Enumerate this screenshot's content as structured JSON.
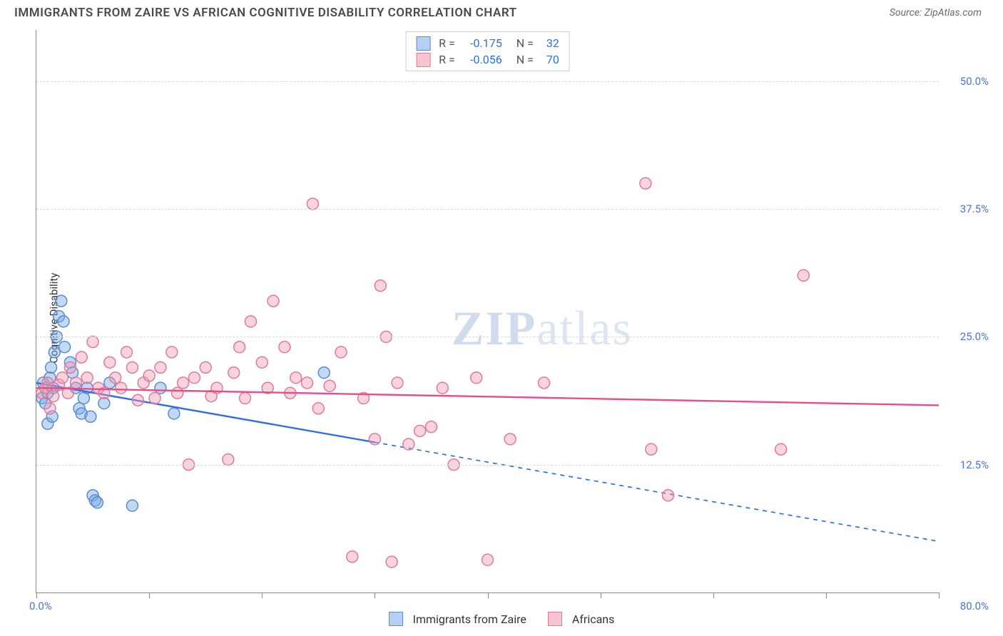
{
  "header": {
    "title": "IMMIGRANTS FROM ZAIRE VS AFRICAN COGNITIVE DISABILITY CORRELATION CHART",
    "source_prefix": "Source: ",
    "source_name": "ZipAtlas.com"
  },
  "watermark": {
    "zip": "ZIP",
    "atlas": "atlas"
  },
  "chart": {
    "type": "scatter",
    "ylabel": "Cognitive Disability",
    "xlim": [
      0,
      80
    ],
    "ylim": [
      0,
      55
    ],
    "xticks_pct": [
      0,
      12.5,
      25,
      37.5,
      50,
      62.5,
      75,
      87.5,
      100
    ],
    "yticks": [
      {
        "v": 12.5,
        "label": "12.5%"
      },
      {
        "v": 25.0,
        "label": "25.0%"
      },
      {
        "v": 37.5,
        "label": "37.5%"
      },
      {
        "v": 50.0,
        "label": "50.0%"
      }
    ],
    "x_origin_label": "0.0%",
    "x_max_label": "80.0%",
    "background_color": "#ffffff",
    "grid_color": "#d8d8d8",
    "series": [
      {
        "key": "zaire",
        "label": "Immigrants from Zaire",
        "color_fill": "rgba(120,170,230,0.45)",
        "color_stroke": "#5a8bd0",
        "trend_color": "#2f6fe0",
        "trend_solid_until_x": 30,
        "trend": {
          "y_at_x0": 20.5,
          "y_at_xmax": 5.0
        },
        "R": "-0.175",
        "N": "32",
        "points": [
          [
            0.5,
            19
          ],
          [
            0.6,
            20.5
          ],
          [
            0.8,
            18.5
          ],
          [
            1.0,
            19.5
          ],
          [
            1.2,
            21
          ],
          [
            1.3,
            22
          ],
          [
            1.5,
            20
          ],
          [
            1.6,
            23.5
          ],
          [
            1.8,
            25
          ],
          [
            2.0,
            27
          ],
          [
            2.2,
            28.5
          ],
          [
            2.4,
            26.5
          ],
          [
            2.5,
            24
          ],
          [
            3.0,
            22.5
          ],
          [
            3.2,
            21.5
          ],
          [
            3.5,
            20
          ],
          [
            3.8,
            18
          ],
          [
            4.0,
            17.5
          ],
          [
            4.2,
            19
          ],
          [
            4.5,
            20
          ],
          [
            4.8,
            17.2
          ],
          [
            5.0,
            9.5
          ],
          [
            5.2,
            9
          ],
          [
            5.4,
            8.8
          ],
          [
            6.0,
            18.5
          ],
          [
            6.5,
            20.5
          ],
          [
            8.5,
            8.5
          ],
          [
            12.2,
            17.5
          ],
          [
            11.0,
            20
          ],
          [
            25.5,
            21.5
          ],
          [
            1.0,
            16.5
          ],
          [
            1.4,
            17.2
          ]
        ]
      },
      {
        "key": "africans",
        "label": "Africans",
        "color_fill": "rgba(240,150,175,0.42)",
        "color_stroke": "#e07a9a",
        "trend_color": "#e84d88",
        "trend_solid_until_x": 80,
        "trend": {
          "y_at_x0": 20.0,
          "y_at_xmax": 18.3
        },
        "R": "-0.056",
        "N": "70",
        "points": [
          [
            0.5,
            19.5
          ],
          [
            0.8,
            20
          ],
          [
            1.0,
            20.5
          ],
          [
            1.2,
            18
          ],
          [
            1.5,
            19.2
          ],
          [
            2.0,
            20.3
          ],
          [
            2.3,
            21
          ],
          [
            2.8,
            19.5
          ],
          [
            3.0,
            22
          ],
          [
            3.5,
            20.5
          ],
          [
            4.0,
            23
          ],
          [
            4.5,
            21
          ],
          [
            5.0,
            24.5
          ],
          [
            5.5,
            20
          ],
          [
            6.0,
            19.5
          ],
          [
            6.5,
            22.5
          ],
          [
            7.0,
            21
          ],
          [
            7.5,
            20
          ],
          [
            8.0,
            23.5
          ],
          [
            8.5,
            22
          ],
          [
            9.0,
            18.8
          ],
          [
            9.5,
            20.5
          ],
          [
            10,
            21.2
          ],
          [
            10.5,
            19
          ],
          [
            11,
            22
          ],
          [
            12,
            23.5
          ],
          [
            12.5,
            19.5
          ],
          [
            13,
            20.5
          ],
          [
            13.5,
            12.5
          ],
          [
            14,
            21
          ],
          [
            15,
            22
          ],
          [
            15.5,
            19.2
          ],
          [
            16,
            20
          ],
          [
            17,
            13
          ],
          [
            17.5,
            21.5
          ],
          [
            18,
            24
          ],
          [
            18.5,
            19
          ],
          [
            19,
            26.5
          ],
          [
            20,
            22.5
          ],
          [
            20.5,
            20
          ],
          [
            21,
            28.5
          ],
          [
            22,
            24
          ],
          [
            22.5,
            19.5
          ],
          [
            23,
            21
          ],
          [
            24,
            20.5
          ],
          [
            24.5,
            38
          ],
          [
            25,
            18
          ],
          [
            26,
            20.2
          ],
          [
            27,
            23.5
          ],
          [
            28,
            3.5
          ],
          [
            29,
            19
          ],
          [
            30,
            15
          ],
          [
            31,
            25
          ],
          [
            31.5,
            3
          ],
          [
            32,
            20.5
          ],
          [
            33,
            14.5
          ],
          [
            34,
            15.8
          ],
          [
            35,
            16.2
          ],
          [
            36,
            20
          ],
          [
            37,
            12.5
          ],
          [
            39,
            21
          ],
          [
            40,
            3.2
          ],
          [
            42,
            15
          ],
          [
            45,
            20.5
          ],
          [
            54,
            40
          ],
          [
            54.5,
            14
          ],
          [
            56,
            9.5
          ],
          [
            66,
            14
          ],
          [
            68,
            31
          ],
          [
            30.5,
            30
          ]
        ]
      }
    ],
    "marker_radius": 8,
    "marker_stroke_width": 1.5,
    "trend_width": 2.4
  },
  "stats_box": {
    "r_label": "R =",
    "n_label": "N ="
  }
}
